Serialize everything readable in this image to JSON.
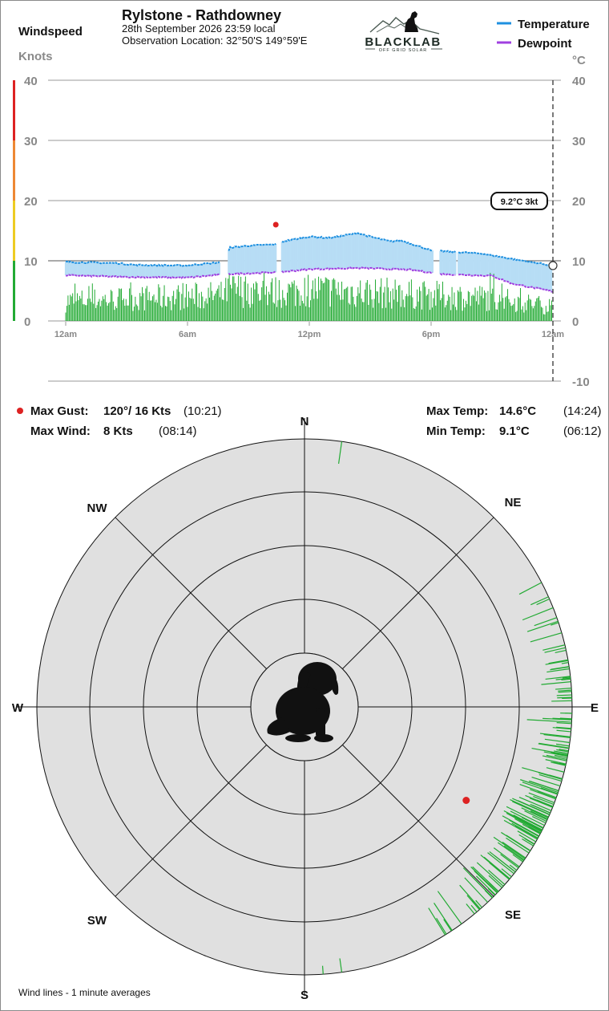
{
  "header": {
    "station": "Rylstone - Rathdowney",
    "datetime": "28th September 2026  23:59 local",
    "location": "Observation Location:  32°50'S 149°59'E",
    "logo_text": "BLACKLAB",
    "logo_sub": "OFF GRID SOLAR",
    "left_title": "Windspeed",
    "left_unit": "Knots",
    "right_unit": "°C"
  },
  "legend": [
    {
      "label": "Temperature",
      "color": "#1e90e0"
    },
    {
      "label": "Dewpoint",
      "color": "#a040e0"
    }
  ],
  "chart_data": [
    {
      "type": "line",
      "title": "Rylstone - Rathdowney",
      "x_ticks": [
        "12am",
        "6am",
        "12pm",
        "6pm",
        "12am"
      ],
      "x_range_hours": [
        0,
        24
      ],
      "y_left_label": "Knots",
      "y_left_ticks": [
        "40",
        "30",
        "20",
        "10",
        "0"
      ],
      "y_left_range": [
        0,
        40
      ],
      "y_right_label": "°C",
      "y_right_ticks": [
        "40",
        "30",
        "20",
        "10",
        "0",
        "-10"
      ],
      "y_right_range": [
        -10,
        40
      ],
      "wind_color_bands": [
        {
          "from": 0,
          "to": 10,
          "color": "#22aa33"
        },
        {
          "from": 10,
          "to": 20,
          "color": "#eecc22"
        },
        {
          "from": 20,
          "to": 30,
          "color": "#ee8833"
        },
        {
          "from": 30,
          "to": 40,
          "color": "#dd2222"
        }
      ],
      "series": [
        {
          "name": "Temperature",
          "color": "#1e90e0",
          "points": [
            [
              0,
              9.8
            ],
            [
              2.5,
              9.6
            ],
            [
              3.5,
              9.3
            ],
            [
              6,
              9.2
            ],
            [
              6.5,
              9.4
            ],
            [
              7.8,
              9.8
            ],
            [
              8.1,
              12.2
            ],
            [
              9,
              12.5
            ],
            [
              10.3,
              12.7
            ],
            [
              10.8,
              13.3
            ],
            [
              12,
              14.0
            ],
            [
              13,
              13.8
            ],
            [
              14.4,
              14.6
            ],
            [
              15,
              14.0
            ],
            [
              16,
              13.2
            ],
            [
              16.5,
              13.4
            ],
            [
              17.5,
              12.3
            ],
            [
              18,
              11.7
            ],
            [
              20.5,
              11.2
            ],
            [
              22,
              10.3
            ],
            [
              24,
              9.2
            ]
          ]
        },
        {
          "name": "Dewpoint",
          "color": "#a040e0",
          "points": [
            [
              0,
              7.6
            ],
            [
              3,
              7.3
            ],
            [
              6,
              7.2
            ],
            [
              8,
              7.8
            ],
            [
              10.5,
              8.1
            ],
            [
              12,
              8.6
            ],
            [
              14.5,
              8.8
            ],
            [
              17,
              8.5
            ],
            [
              18.5,
              7.8
            ],
            [
              21,
              7.5
            ],
            [
              22,
              6.2
            ],
            [
              24,
              4.9
            ]
          ]
        }
      ],
      "wind_speed_profile": [
        [
          0,
          3.5
        ],
        [
          7.8,
          4.5
        ],
        [
          8,
          5.5
        ],
        [
          10.5,
          5
        ],
        [
          12,
          5.5
        ],
        [
          15,
          5
        ],
        [
          18,
          4.5
        ],
        [
          21,
          4
        ],
        [
          24,
          2.5
        ]
      ],
      "max_gust_marker": {
        "hour": 10.35,
        "knots": 16,
        "direction_deg": 120
      },
      "current": {
        "temp_label": "9.2°C  3kt",
        "temp": 9.2
      }
    },
    {
      "type": "polar",
      "title": "Wind direction",
      "ring_count": 5,
      "directions": [
        "N",
        "NE",
        "E",
        "SE",
        "S",
        "SW",
        "W",
        "NW"
      ],
      "wind_direction_profile": [
        [
          0,
          12
        ],
        [
          8,
          140
        ],
        [
          10,
          112
        ],
        [
          12,
          105
        ],
        [
          14,
          125
        ],
        [
          16,
          130
        ],
        [
          18,
          118
        ],
        [
          20,
          100
        ],
        [
          22,
          92
        ],
        [
          24,
          88
        ]
      ],
      "gust_marker": {
        "direction_deg": 120,
        "knots": 16
      }
    }
  ],
  "stats": {
    "max_gust": {
      "label": "Max Gust:",
      "value": "120°/  16 Kts",
      "time": "(10:21)"
    },
    "max_wind": {
      "label": "Max Wind:",
      "value": "8 Kts",
      "time": "(08:14)"
    },
    "max_temp": {
      "label": "Max Temp:",
      "value": "14.6°C",
      "time": "(14:24)"
    },
    "min_temp": {
      "label": "Min Temp:",
      "value": "9.1°C",
      "time": "(06:12)"
    }
  },
  "footer": {
    "note": "Wind lines - 1 minute averages"
  },
  "colors": {
    "gust_marker": "#dd2222",
    "wind": "#22aa33",
    "fill": "#b7ddf5",
    "compass_bg": "#e0e0e0"
  }
}
